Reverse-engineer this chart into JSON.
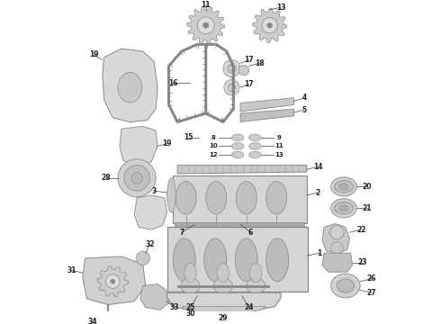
{
  "bg": "#ffffff",
  "lc": "#888888",
  "tc": "#222222",
  "fw": 4.9,
  "fh": 3.6,
  "dpi": 100
}
